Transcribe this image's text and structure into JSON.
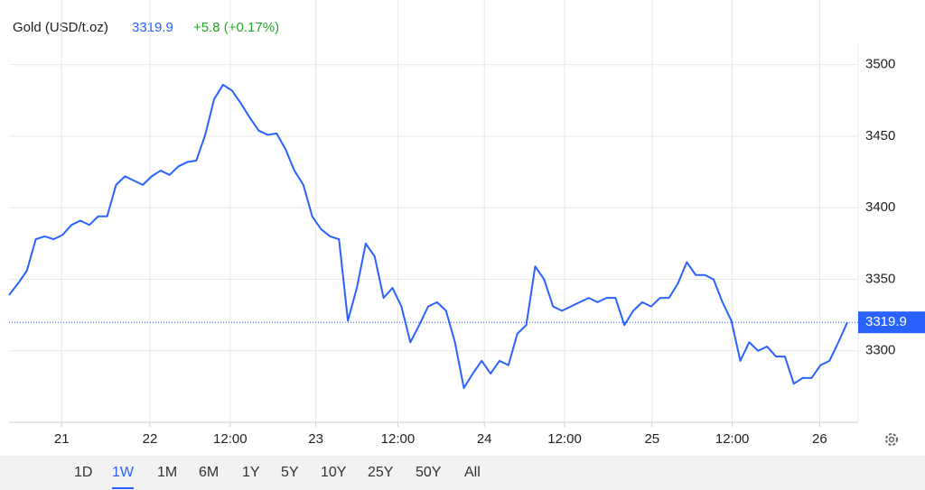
{
  "chart_data": {
    "type": "line",
    "title": "Gold (USD/t.oz)",
    "price": 3319.9,
    "change": "+5.8 (+0.17%)",
    "color": "#2962ff",
    "grid": true,
    "series": [
      {
        "color": "#2962ff",
        "values": [
          3339,
          3347,
          3356,
          3378,
          3380,
          3378,
          3381,
          3388,
          3391,
          3388,
          3394,
          3394,
          3416,
          3422,
          3419,
          3416,
          3422,
          3426,
          3423,
          3429,
          3432,
          3433,
          3451,
          3476,
          3486,
          3482,
          3473,
          3463,
          3454,
          3451,
          3452,
          3441,
          3426,
          3416,
          3394,
          3385,
          3380,
          3378,
          3321,
          3344,
          3375,
          3366,
          3337,
          3344,
          3331,
          3306,
          3318,
          3331,
          3334,
          3328,
          3306,
          3274,
          3284,
          3293,
          3284,
          3293,
          3290,
          3312,
          3318,
          3359,
          3350,
          3331,
          3328,
          3331,
          3334,
          3337,
          3334,
          3337,
          3337,
          3318,
          3328,
          3334,
          3331,
          3337,
          3337,
          3347,
          3362,
          3353,
          3353,
          3350,
          3334,
          3321,
          3293,
          3306,
          3300,
          3303,
          3296,
          3296,
          3277,
          3281,
          3281,
          3290,
          3293,
          3306,
          3319.9
        ]
      }
    ],
    "xlim": [
      0,
      94
    ],
    "xticks": [
      {
        "value": 5.9,
        "label": "21"
      },
      {
        "value": 15.8,
        "label": "22"
      },
      {
        "value": 24.8,
        "label": "12:00"
      },
      {
        "value": 34.4,
        "label": "23"
      },
      {
        "value": 43.6,
        "label": "12:00"
      },
      {
        "value": 53.3,
        "label": "24"
      },
      {
        "value": 62.3,
        "label": "12:00"
      },
      {
        "value": 72.1,
        "label": "25"
      },
      {
        "value": 81.1,
        "label": "12:00"
      },
      {
        "value": 90.9,
        "label": "26"
      }
    ],
    "ylim": [
      3250,
      3515
    ],
    "yticks": [
      3300,
      3350,
      3400,
      3450,
      3500
    ],
    "ranges": [
      "1D",
      "1W",
      "1M",
      "6M",
      "1Y",
      "5Y",
      "10Y",
      "25Y",
      "50Y",
      "All"
    ],
    "active_range": 1
  }
}
